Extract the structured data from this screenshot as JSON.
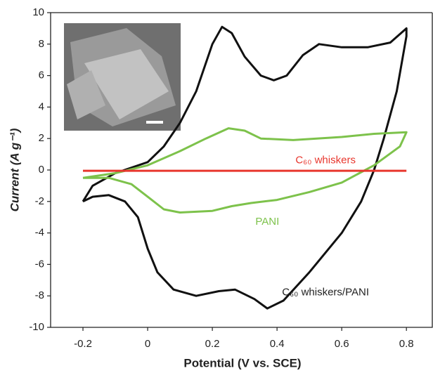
{
  "chart_data": {
    "type": "line",
    "xlabel": "Potential (V vs. SCE)",
    "ylabel": "Current (A g⁻¹)",
    "xlim": [
      -0.3,
      0.88
    ],
    "ylim": [
      -10,
      10
    ],
    "xticks": [
      -0.2,
      0,
      0.2,
      0.4,
      0.6,
      0.8
    ],
    "yticks": [
      -10,
      -8,
      -6,
      -4,
      -2,
      0,
      2,
      4,
      6,
      8,
      10
    ],
    "series": [
      {
        "name": "C₆₀ whiskers/PANI",
        "color": "#111111",
        "x": [
          -0.2,
          -0.17,
          -0.1,
          0,
          0.05,
          0.1,
          0.15,
          0.2,
          0.23,
          0.26,
          0.3,
          0.35,
          0.39,
          0.43,
          0.48,
          0.53,
          0.6,
          0.68,
          0.75,
          0.8,
          0.8,
          0.77,
          0.73,
          0.7,
          0.66,
          0.6,
          0.5,
          0.42,
          0.37,
          0.33,
          0.27,
          0.22,
          0.15,
          0.08,
          0.03,
          0,
          -0.03,
          -0.07,
          -0.12,
          -0.17,
          -0.2
        ],
        "values": [
          -2,
          -1,
          -0.2,
          0.5,
          1.5,
          3,
          5,
          8,
          9.1,
          8.7,
          7.2,
          6,
          5.7,
          6,
          7.3,
          8,
          7.8,
          7.8,
          8.1,
          9,
          8.5,
          5,
          2,
          0,
          -2,
          -4,
          -6.5,
          -8.3,
          -8.8,
          -8.2,
          -7.6,
          -7.7,
          -8,
          -7.6,
          -6.5,
          -5,
          -3,
          -2,
          -1.6,
          -1.7,
          -2
        ]
      },
      {
        "name": "PANI",
        "color": "#7dc24b",
        "x": [
          -0.2,
          -0.1,
          0,
          0.1,
          0.18,
          0.25,
          0.3,
          0.35,
          0.45,
          0.6,
          0.7,
          0.8,
          0.78,
          0.7,
          0.6,
          0.5,
          0.4,
          0.32,
          0.26,
          0.2,
          0.1,
          0.05,
          0,
          -0.05,
          -0.12,
          -0.2
        ],
        "values": [
          -0.5,
          -0.2,
          0.3,
          1.2,
          2,
          2.65,
          2.5,
          2,
          1.9,
          2.1,
          2.3,
          2.4,
          1.5,
          0.3,
          -0.8,
          -1.4,
          -1.9,
          -2.1,
          -2.3,
          -2.6,
          -2.7,
          -2.5,
          -1.7,
          -0.9,
          -0.5,
          -0.5
        ]
      },
      {
        "name": "C₆₀ whiskers",
        "color": "#e8362d",
        "x": [
          -0.2,
          0.8
        ],
        "values": [
          -0.05,
          -0.05
        ]
      }
    ]
  }
}
